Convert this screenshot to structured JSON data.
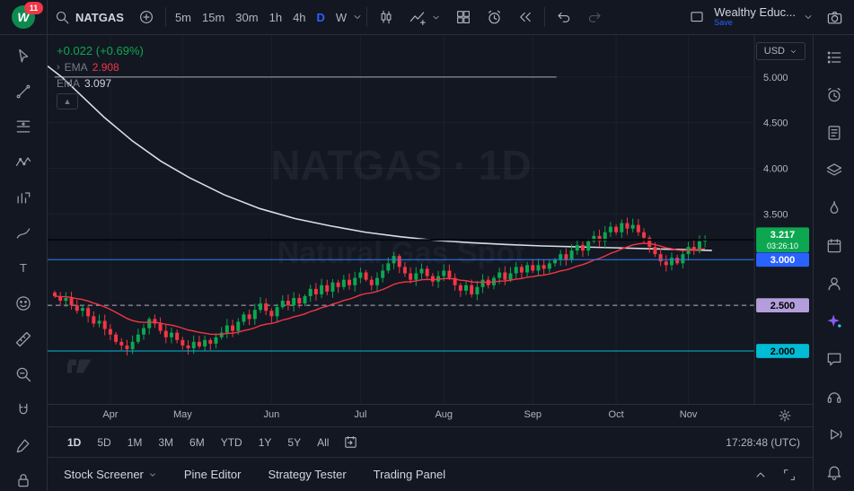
{
  "topbar": {
    "badge_count": "11",
    "symbol_search": "NATGAS",
    "intervals": [
      "5m",
      "15m",
      "30m",
      "1h",
      "4h",
      "D",
      "W"
    ],
    "active_interval": "D",
    "account": {
      "name": "Wealthy Educ...",
      "save_label": "Save"
    }
  },
  "legend": {
    "change": "+0.022 (+0.69%)",
    "indicators": [
      {
        "name": "EMA",
        "value": "2.908",
        "color": "#f23645"
      },
      {
        "name": "EMA",
        "value": "3.097",
        "color": "#d1d4dc"
      }
    ]
  },
  "watermark": {
    "line1": "NATGAS · 1D",
    "line2": "Natural Gas Spot"
  },
  "price_scale": {
    "currency": "USD"
  },
  "range_bar": {
    "ranges": [
      "1D",
      "5D",
      "1M",
      "3M",
      "6M",
      "YTD",
      "1Y",
      "5Y",
      "All"
    ],
    "active": "1D",
    "clock": "17:28:48 (UTC)"
  },
  "bottom_panel": {
    "tabs": [
      "Stock Screener",
      "Pine Editor",
      "Strategy Tester",
      "Trading Panel"
    ]
  },
  "chart_data": {
    "type": "candlestick",
    "title": "NATGAS · 1D",
    "subtitle": "Natural Gas Spot",
    "currency": "USD",
    "ylim": [
      1.42,
      5.46
    ],
    "price_ticks": [
      "5.000",
      "4.500",
      "4.000",
      "3.500",
      "3.000",
      "2.500",
      "2.000"
    ],
    "x_months": {
      "labels": [
        "Apr",
        "May",
        "Jun",
        "Jul",
        "Aug",
        "Sep",
        "Oct",
        "Nov"
      ],
      "indices": [
        10,
        23,
        39,
        55,
        70,
        86,
        101,
        114
      ]
    },
    "open_first": 2.64,
    "closes": [
      2.6,
      2.55,
      2.58,
      2.5,
      2.44,
      2.47,
      2.38,
      2.3,
      2.33,
      2.24,
      2.18,
      2.1,
      2.06,
      2.02,
      2.1,
      2.18,
      2.25,
      2.35,
      2.3,
      2.22,
      2.15,
      2.2,
      2.12,
      2.06,
      2.03,
      2.1,
      2.05,
      2.12,
      2.08,
      2.15,
      2.2,
      2.28,
      2.22,
      2.32,
      2.4,
      2.35,
      2.45,
      2.52,
      2.44,
      2.38,
      2.48,
      2.55,
      2.5,
      2.58,
      2.52,
      2.6,
      2.68,
      2.62,
      2.72,
      2.65,
      2.75,
      2.7,
      2.78,
      2.72,
      2.8,
      2.86,
      2.78,
      2.72,
      2.8,
      2.88,
      2.96,
      3.04,
      2.92,
      2.85,
      2.78,
      2.85,
      2.9,
      2.82,
      2.76,
      2.82,
      2.88,
      2.8,
      2.72,
      2.66,
      2.72,
      2.62,
      2.7,
      2.78,
      2.72,
      2.8,
      2.86,
      2.78,
      2.85,
      2.92,
      2.86,
      2.94,
      2.88,
      2.94,
      2.9,
      2.96,
      3.0,
      3.06,
      3.0,
      3.1,
      3.16,
      3.1,
      3.2,
      3.26,
      3.2,
      3.3,
      3.36,
      3.3,
      3.4,
      3.34,
      3.38,
      3.3,
      3.24,
      3.14,
      3.06,
      2.98,
      2.94,
      3.02,
      2.96,
      3.06,
      3.14,
      3.1,
      3.2,
      3.217
    ],
    "colors": {
      "up": "#0ca750",
      "down": "#f23645"
    },
    "ema_red": {
      "period": 21,
      "current": "2.908",
      "color": "#f23645"
    },
    "ema_white": {
      "current": "3.097",
      "color": "#d9dde4",
      "points": [
        [
          0,
          5.12
        ],
        [
          0.02,
          5.0
        ],
        [
          0.05,
          4.78
        ],
        [
          0.08,
          4.56
        ],
        [
          0.12,
          4.3
        ],
        [
          0.16,
          4.08
        ],
        [
          0.2,
          3.9
        ],
        [
          0.25,
          3.71
        ],
        [
          0.3,
          3.56
        ],
        [
          0.35,
          3.45
        ],
        [
          0.4,
          3.37
        ],
        [
          0.45,
          3.3
        ],
        [
          0.5,
          3.25
        ],
        [
          0.55,
          3.21
        ],
        [
          0.6,
          3.185
        ],
        [
          0.65,
          3.165
        ],
        [
          0.7,
          3.15
        ],
        [
          0.75,
          3.14
        ],
        [
          0.8,
          3.13
        ],
        [
          0.85,
          3.12
        ],
        [
          0.9,
          3.11
        ],
        [
          0.94,
          3.1
        ]
      ]
    },
    "levels": [
      {
        "price": 5.0,
        "color": "#787b86",
        "x1": 0.01,
        "x2": 0.72,
        "width": 1.5,
        "above": false
      },
      {
        "price": 2.5,
        "color": "#b2b5be",
        "dash": "5 4",
        "above": false
      },
      {
        "price": 3.217,
        "color": "#05070c",
        "width": 2,
        "above": true
      },
      {
        "price": 3.0,
        "color": "#2d7ff9",
        "above": true
      },
      {
        "price": 2.0,
        "color": "#00bcd4",
        "above": true
      }
    ],
    "axis_chips": [
      {
        "price": 3.0,
        "label": "3.000",
        "bg": "#2962ff",
        "fg": "#ffffff"
      },
      {
        "price": 2.5,
        "label": "2.500",
        "bg": "#b39ddb",
        "fg": "#000000"
      },
      {
        "price": 2.0,
        "label": "2.000",
        "bg": "#00bcd4",
        "fg": "#000000"
      }
    ],
    "last_price": {
      "value": "3.217",
      "countdown": "03:26:10",
      "bg": "#0ca750",
      "fg": "#ffffff"
    }
  }
}
